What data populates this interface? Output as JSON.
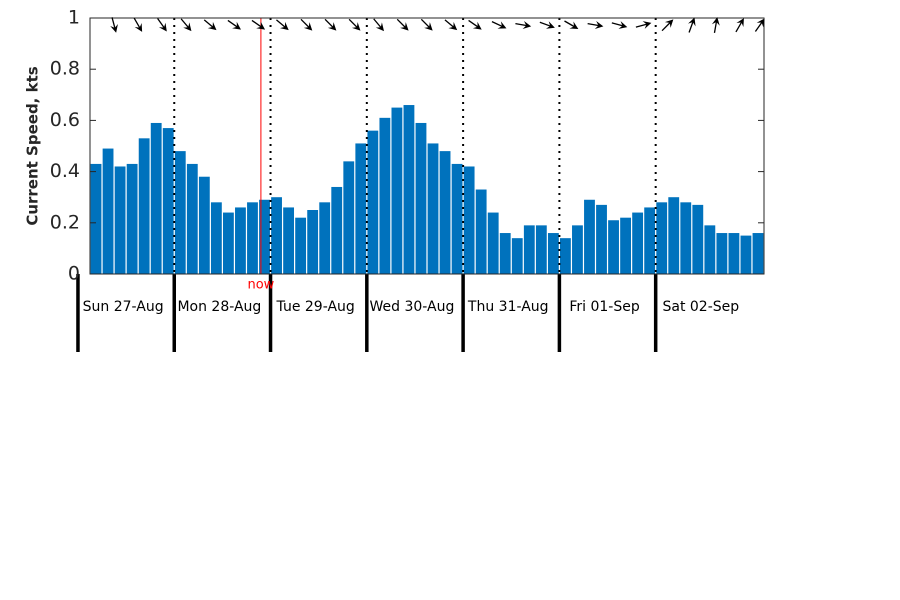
{
  "chart_data": {
    "type": "bar",
    "y_label": "Current Speed, kts",
    "color": "#0072bd",
    "x": [
      4.5,
      7.5,
      10.5,
      13.5,
      16.5,
      19.5,
      22.5,
      25.5,
      28.5,
      31.5,
      34.5,
      37.5,
      40.5,
      43.5,
      46.5,
      49.5,
      52.5,
      55.5,
      58.5,
      61.5,
      64.5,
      67.5,
      70.5,
      73.5,
      76.5,
      79.5,
      82.5,
      85.5,
      88.5,
      91.5,
      94.5,
      97.5,
      100.5,
      103.5,
      106.5,
      109.5,
      112.5,
      115.5,
      118.5,
      121.5,
      124.5,
      127.5,
      130.5,
      133.5,
      136.5,
      139.5,
      142.5,
      145.5,
      148.5,
      151.5,
      154.5,
      157.5,
      160.5,
      163.5,
      166.5,
      169.5
    ],
    "values": [
      0.43,
      0.49,
      0.42,
      0.43,
      0.53,
      0.59,
      0.57,
      0.48,
      0.43,
      0.38,
      0.28,
      0.24,
      0.26,
      0.28,
      0.29,
      0.3,
      0.26,
      0.22,
      0.25,
      0.28,
      0.34,
      0.44,
      0.51,
      0.56,
      0.61,
      0.65,
      0.66,
      0.59,
      0.51,
      0.48,
      0.43,
      0.42,
      0.33,
      0.24,
      0.16,
      0.14,
      0.19,
      0.19,
      0.16,
      0.14,
      0.19,
      0.29,
      0.27,
      0.21,
      0.22,
      0.24,
      0.26,
      0.28,
      0.3,
      0.28,
      0.27,
      0.19,
      0.16,
      0.16,
      0.15,
      0.16
    ],
    "xlim": [
      3,
      171
    ],
    "ylim": [
      0,
      1
    ],
    "yticks": [
      0,
      0.2,
      0.4,
      0.6,
      0.8,
      1
    ],
    "xticks": [
      {
        "value": 0,
        "label": "Sun 27-Aug"
      },
      {
        "value": 24,
        "label": "Mon 28-Aug"
      },
      {
        "value": 48,
        "label": "Tue 29-Aug"
      },
      {
        "value": 72,
        "label": "Wed 30-Aug"
      },
      {
        "value": 96,
        "label": "Thu 31-Aug"
      },
      {
        "value": 120,
        "label": "Fri 01-Sep"
      },
      {
        "value": 144,
        "label": "Sat 02-Sep"
      }
    ],
    "now": {
      "x": 45.6,
      "label": "now",
      "color": "#ff0000"
    },
    "arrows": {
      "x": [
        9,
        15,
        21,
        27,
        33,
        39,
        45,
        51,
        57,
        63,
        69,
        75,
        81,
        87,
        93,
        99,
        105,
        111,
        117,
        123,
        129,
        135,
        141,
        147,
        153,
        159,
        165,
        170
      ],
      "directions": [
        165,
        150,
        145,
        140,
        130,
        125,
        125,
        130,
        135,
        135,
        135,
        140,
        135,
        135,
        130,
        125,
        115,
        100,
        110,
        120,
        100,
        105,
        75,
        45,
        20,
        10,
        30,
        35
      ]
    }
  }
}
